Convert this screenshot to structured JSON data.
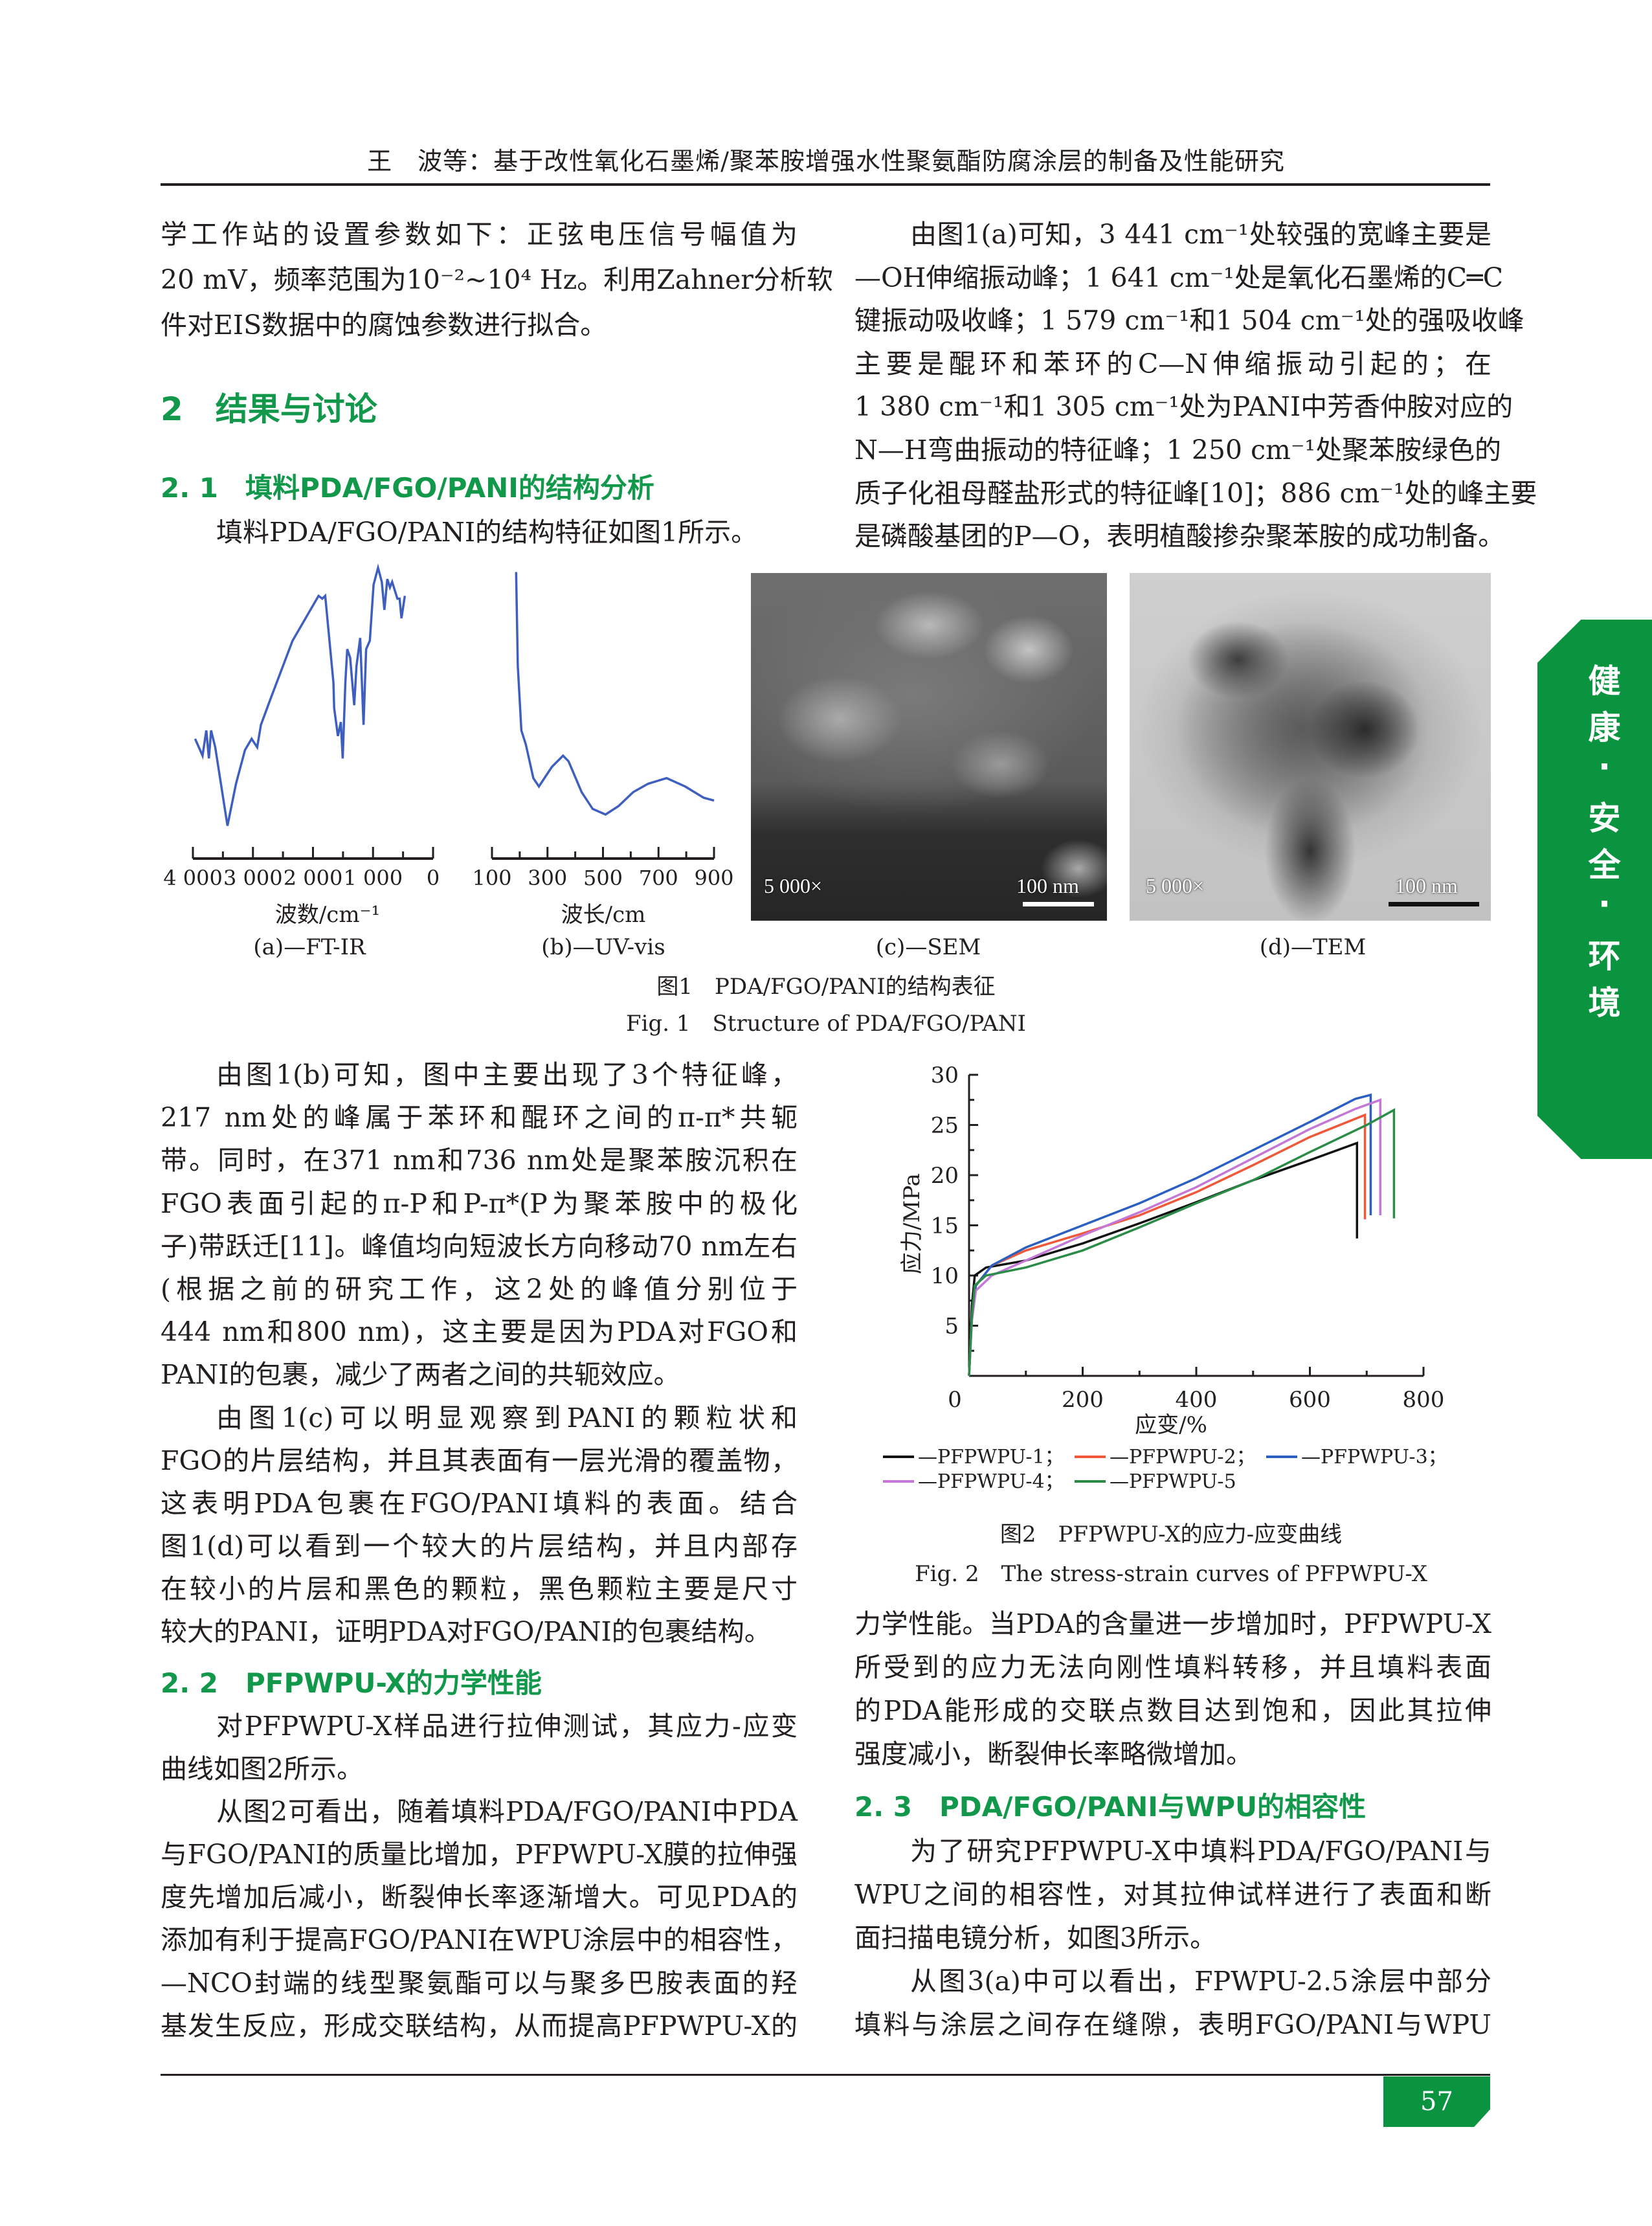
{
  "header": {
    "running_title": "王　波等：基于改性氧化石墨烯/聚苯胺增强水性聚氨酯防腐涂层的制备及性能研究"
  },
  "side_tab": {
    "chars": [
      "健",
      "康",
      "·",
      "安",
      "全",
      "·",
      "环",
      "境"
    ],
    "color": "#0a9440"
  },
  "page_number": "57",
  "headings": {
    "h2": "2　结果与讨论",
    "h2_1": "2. 1　填料PDA/FGO/PANI的结构分析",
    "h2_2": "2. 2　PFPWPU-X的力学性能",
    "h2_3": "2. 3　PDA/FGO/PANI与WPU的相容性"
  },
  "text": {
    "left_top": [
      "学工作站的设置参数如下：正弦电压信号幅值为",
      "20 mV，频率范围为10⁻²~10⁴ Hz。利用Zahner分析软",
      "件对EIS数据中的腐蚀参数进行拟合。"
    ],
    "left_fig_intro": [
      "填料PDA/FGO/PANI的结构特征如图1所示。"
    ],
    "right_top": [
      "由图1(a)可知，3 441 cm⁻¹处较强的宽峰主要是",
      "—OH伸缩振动峰；1 641 cm⁻¹处是氧化石墨烯的C═C",
      "键振动吸收峰；1 579 cm⁻¹和1 504 cm⁻¹处的强吸收峰",
      "主要是醌环和苯环的C—N伸缩振动引起的；在",
      "1 380 cm⁻¹和1 305 cm⁻¹处为PANI中芳香仲胺对应的",
      "N—H弯曲振动的特征峰；1 250 cm⁻¹处聚苯胺绿色的",
      "质子化祖母醛盐形式的特征峰[10]；886 cm⁻¹处的峰主要",
      "是磷酸基团的P—O，表明植酸掺杂聚苯胺的成功制备。"
    ],
    "left_mid": [
      "由图1(b)可知，图中主要出现了3个特征峰，",
      "217 nm处的峰属于苯环和醌环之间的π-π*共轭",
      "带。同时，在371 nm和736 nm处是聚苯胺沉积在",
      "FGO表面引起的π-P和P-π*(P为聚苯胺中的极化",
      "子)带跃迁[11]。峰值均向短波长方向移动70 nm左右",
      "(根据之前的研究工作，这2处的峰值分别位于",
      "444 nm和800 nm)，这主要是因为PDA对FGO和",
      "PANI的包裹，减少了两者之间的共轭效应。",
      "由图1(c)可以明显观察到PANI的颗粒状和",
      "FGO的片层结构，并且其表面有一层光滑的覆盖物，",
      "这表明PDA包裹在FGO/PANI填料的表面。结合",
      "图1(d)可以看到一个较大的片层结构，并且内部存",
      "在较小的片层和黑色的颗粒，黑色颗粒主要是尺寸",
      "较大的PANI，证明PDA对FGO/PANI的包裹结构。"
    ],
    "left_bottom": [
      "对PFPWPU-X样品进行拉伸测试，其应力-应变",
      "曲线如图2所示。",
      "从图2可看出，随着填料PDA/FGO/PANI中PDA",
      "与FGO/PANI的质量比增加，PFPWPU-X膜的拉伸强",
      "度先增加后减小，断裂伸长率逐渐增大。可见PDA的",
      "添加有利于提高FGO/PANI在WPU涂层中的相容性，",
      "—NCO封端的线型聚氨酯可以与聚多巴胺表面的羟",
      "基发生反应，形成交联结构，从而提高PFPWPU-X的"
    ],
    "right_mid": [
      "力学性能。当PDA的含量进一步增加时，PFPWPU-X",
      "所受到的应力无法向刚性填料转移，并且填料表面",
      "的PDA能形成的交联点数目达到饱和，因此其拉伸",
      "强度减小，断裂伸长率略微增加。"
    ],
    "right_bottom": [
      "为了研究PFPWPU-X中填料PDA/FGO/PANI与",
      "WPU之间的相容性，对其拉伸试样进行了表面和断",
      "面扫描电镜分析，如图3所示。",
      "从图3(a)中可以看出，FPWPU-2.5涂层中部分",
      "填料与涂层之间存在缝隙，表明FGO/PANI与WPU"
    ]
  },
  "figure1": {
    "caption_cn": "图1　PDA/FGO/PANI的结构表征",
    "caption_en": "Fig. 1　Structure of PDA/FGO/PANI",
    "panels": {
      "a": {
        "label": "(a)—FT-IR",
        "xlabel": "波数/cm⁻¹"
      },
      "b": {
        "label": "(b)—UV-vis",
        "xlabel": "波长/cm"
      },
      "c": {
        "label": "(c)—SEM",
        "magnification": "5 000×",
        "scale": "100 nm"
      },
      "d": {
        "label": "(d)—TEM",
        "magnification": "5 000×",
        "scale": "100 nm"
      }
    }
  },
  "figure2": {
    "caption_cn": "图2　PFPWPU-X的应力-应变曲线",
    "caption_en": "Fig. 2　The stress-strain curves of PFPWPU-X",
    "legend": [
      "—PFPWPU-1；",
      "—PFPWPU-2；",
      "—PFPWPU-3；",
      "—PFPWPU-4；",
      "—PFPWPU-5"
    ]
  },
  "chart_data": [
    {
      "type": "line",
      "panel": "(a)—FT-IR",
      "xlabel": "波数/cm⁻¹",
      "xlim": [
        4000,
        0
      ],
      "xticks": [
        "4 000",
        "3 000",
        "2 000",
        "1 000",
        "0"
      ],
      "y_axis_shown": false,
      "color": "#3f5fbf",
      "x": [
        3963,
        3839,
        3777,
        3734,
        3697,
        3628,
        3424,
        3282,
        3133,
        3022,
        2929,
        2867,
        2712,
        2341,
        1907,
        1845,
        1796,
        1659,
        1647,
        1585,
        1536,
        1505,
        1461,
        1430,
        1381,
        1313,
        1276,
        1214,
        1158,
        1115,
        1053,
        991,
        916,
        854,
        811,
        762,
        718,
        681,
        594,
        557,
        526,
        470
      ],
      "y": [
        39,
        33,
        42,
        32,
        42,
        36,
        8,
        23,
        35,
        39,
        36,
        44,
        53,
        74,
        90,
        89,
        90,
        59,
        50,
        40,
        45,
        32,
        59,
        71,
        68,
        51,
        65,
        75,
        44,
        71,
        74,
        94,
        100,
        95,
        85,
        96,
        93,
        95,
        89,
        89,
        82,
        90
      ]
    },
    {
      "type": "line",
      "panel": "(b)—UV-vis",
      "xlabel": "波长/cm",
      "xlim": [
        100,
        900
      ],
      "xticks": [
        "100",
        "300",
        "500",
        "700",
        "900"
      ],
      "y_axis_shown": false,
      "color": "#3f5fbf",
      "x": [
        187,
        193,
        206,
        222,
        249,
        269,
        316,
        356,
        376,
        423,
        463,
        509,
        556,
        609,
        663,
        729,
        796,
        863,
        900
      ],
      "y": [
        98.5,
        65,
        42,
        37,
        25,
        22,
        29,
        33,
        31,
        20,
        14,
        12,
        15,
        20,
        23,
        25,
        22,
        18,
        17
      ]
    },
    {
      "type": "line",
      "xlabel": "应变/%",
      "ylabel": "应力/MPa",
      "xlim": [
        0,
        800
      ],
      "ylim": [
        0,
        30
      ],
      "xticks": [
        "0",
        "200",
        "400",
        "600",
        "800"
      ],
      "yticks": [
        "5",
        "10",
        "15",
        "20",
        "25",
        "30"
      ],
      "grid": false,
      "legend": "bottom",
      "series": [
        {
          "name": "PFPWPU-1",
          "color": "#111111",
          "x": [
            0,
            5,
            10,
            30,
            100,
            200,
            300,
            400,
            500,
            600,
            683,
            683
          ],
          "y": [
            0,
            7,
            10,
            10.8,
            11.5,
            13.2,
            15.2,
            17.3,
            19.5,
            21.5,
            23.2,
            13.7
          ]
        },
        {
          "name": "PFPWPU-2",
          "color": "#f0583a",
          "x": [
            0,
            5,
            12,
            40,
            100,
            200,
            300,
            400,
            500,
            600,
            697,
            697
          ],
          "y": [
            0,
            6,
            9,
            11,
            12.5,
            14.2,
            16,
            18.3,
            21,
            23.8,
            26,
            15.6
          ]
        },
        {
          "name": "PFPWPU-3",
          "color": "#2b5fc2",
          "x": [
            0,
            5,
            12,
            40,
            100,
            200,
            300,
            400,
            500,
            600,
            680,
            707,
            707
          ],
          "y": [
            0,
            6,
            9,
            11,
            12.8,
            15,
            17.2,
            19.7,
            22.5,
            25.3,
            27.6,
            28,
            16
          ]
        },
        {
          "name": "PFPWPU-4",
          "color": "#c477d6",
          "x": [
            0,
            5,
            12,
            40,
            100,
            200,
            300,
            400,
            500,
            600,
            680,
            724,
            724
          ],
          "y": [
            0,
            5.5,
            8.5,
            10,
            11.5,
            14,
            16.3,
            18.8,
            21.7,
            24.6,
            26.6,
            27.5,
            16
          ]
        },
        {
          "name": "PFPWPU-5",
          "color": "#2a8c47",
          "x": [
            0,
            5,
            10,
            30,
            100,
            200,
            300,
            400,
            500,
            600,
            700,
            748,
            748
          ],
          "y": [
            0,
            6,
            9,
            10,
            10.8,
            12.5,
            14.8,
            17.2,
            19.5,
            22.3,
            25,
            26.5,
            15.7
          ]
        }
      ]
    }
  ]
}
